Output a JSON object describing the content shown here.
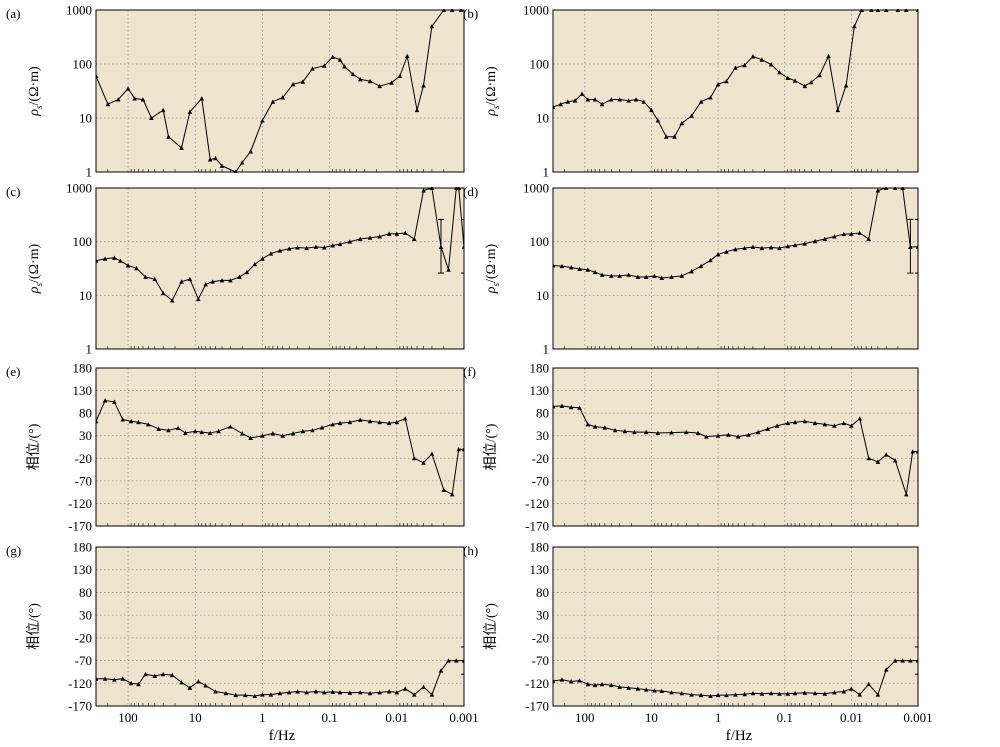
{
  "figure": {
    "x_axis_label": "f/Hz"
  },
  "style": {
    "panel_bg": "#efe5cf",
    "grid": "#8c8c8c",
    "line": "#000000"
  },
  "chart_data": [
    {
      "panel": "(a)",
      "type": "line",
      "scale": "log-log",
      "ylabel_rho": "ρs/(Ω·m)",
      "ylim": [
        1,
        1000
      ],
      "xlim": [
        300,
        0.001
      ],
      "y_ticks": [
        "1000",
        "100",
        "10",
        "1"
      ],
      "grid": true,
      "x": [
        300,
        200,
        140,
        100,
        80,
        60,
        45,
        30,
        25,
        16,
        12,
        8,
        6,
        5,
        4,
        2.5,
        2,
        1.5,
        1,
        0.7,
        0.5,
        0.35,
        0.25,
        0.18,
        0.12,
        0.09,
        0.07,
        0.06,
        0.045,
        0.035,
        0.025,
        0.018,
        0.012,
        0.009,
        0.007,
        0.005,
        0.004,
        0.003,
        0.002,
        0.0015,
        0.0011
      ],
      "y": [
        60,
        18,
        22,
        35,
        23,
        22,
        10,
        14,
        4.5,
        2.8,
        13,
        23,
        1.7,
        1.8,
        1.3,
        1,
        1.5,
        2.4,
        9,
        20,
        24,
        42,
        47,
        82,
        93,
        135,
        120,
        90,
        65,
        52,
        48,
        39,
        45,
        60,
        140,
        14,
        40,
        500,
        1000,
        1000,
        1000
      ]
    },
    {
      "panel": "(b)",
      "type": "line",
      "scale": "log-log",
      "ylabel_rho": "ρs/(Ω·m)",
      "ylim": [
        1,
        1000
      ],
      "xlim": [
        300,
        0.001
      ],
      "y_ticks": [
        "1000",
        "100",
        "10",
        "1"
      ],
      "grid": true,
      "x": [
        300,
        230,
        180,
        140,
        110,
        90,
        70,
        55,
        40,
        30,
        22,
        17,
        13,
        10,
        8,
        6,
        4.5,
        3.5,
        2.5,
        1.8,
        1.3,
        1,
        0.75,
        0.55,
        0.4,
        0.3,
        0.22,
        0.16,
        0.12,
        0.09,
        0.07,
        0.05,
        0.04,
        0.03,
        0.022,
        0.016,
        0.012,
        0.009,
        0.007,
        0.005,
        0.004,
        0.003,
        0.002,
        0.0015,
        0.001
      ],
      "y": [
        16,
        18,
        20,
        21,
        28,
        22,
        22,
        18,
        22,
        22,
        21,
        22,
        20,
        14,
        9,
        4.5,
        4.5,
        8,
        11,
        20,
        24,
        42,
        48,
        85,
        95,
        138,
        120,
        98,
        70,
        55,
        49,
        39,
        46,
        62,
        140,
        14,
        40,
        500,
        1000,
        1000,
        1000,
        1000,
        1000,
        1000,
        1000
      ]
    },
    {
      "panel": "(c)",
      "type": "line",
      "scale": "log-log",
      "ylabel_rho": "ρs/(Ω·m)",
      "ylim": [
        1,
        1000
      ],
      "xlim": [
        300,
        0.001
      ],
      "y_ticks": [
        "1000",
        "100",
        "10",
        "1"
      ],
      "grid": true,
      "x": [
        300,
        220,
        160,
        130,
        100,
        75,
        55,
        40,
        30,
        22,
        16,
        12,
        9,
        7,
        5.5,
        4,
        3,
        2.2,
        1.7,
        1.3,
        1,
        0.75,
        0.55,
        0.4,
        0.3,
        0.22,
        0.16,
        0.12,
        0.09,
        0.07,
        0.05,
        0.035,
        0.025,
        0.018,
        0.013,
        0.01,
        0.0075,
        0.0055,
        0.004,
        0.003,
        0.0022,
        0.0017,
        0.0013,
        0.0012,
        0.001
      ],
      "y": [
        44,
        48,
        50,
        44,
        36,
        32,
        22,
        20,
        11,
        8,
        18,
        20,
        8.5,
        16,
        18,
        19,
        19,
        22,
        27,
        38,
        48,
        60,
        68,
        74,
        78,
        76,
        80,
        78,
        85,
        90,
        100,
        112,
        118,
        125,
        140,
        140,
        145,
        112,
        900,
        1000,
        80,
        30,
        1000,
        1000,
        80
      ],
      "err_upper": [
        null,
        null,
        null,
        null,
        null,
        null,
        null,
        null,
        null,
        null,
        null,
        null,
        null,
        null,
        null,
        null,
        null,
        null,
        null,
        null,
        null,
        null,
        null,
        null,
        null,
        null,
        null,
        null,
        null,
        null,
        null,
        null,
        null,
        null,
        null,
        null,
        null,
        null,
        null,
        null,
        260,
        null,
        null,
        null,
        260
      ],
      "err_lower": [
        null,
        null,
        null,
        null,
        null,
        null,
        null,
        null,
        null,
        null,
        null,
        null,
        null,
        null,
        null,
        null,
        null,
        null,
        null,
        null,
        null,
        null,
        null,
        null,
        null,
        null,
        null,
        null,
        null,
        null,
        null,
        null,
        null,
        null,
        null,
        null,
        null,
        null,
        null,
        null,
        26,
        null,
        null,
        null,
        26
      ]
    },
    {
      "panel": "(d)",
      "type": "line",
      "scale": "log-log",
      "ylabel_rho": "ρs/(Ω·m)",
      "ylim": [
        1,
        1000
      ],
      "xlim": [
        300,
        0.001
      ],
      "y_ticks": [
        "1000",
        "100",
        "10",
        "1"
      ],
      "grid": true,
      "x": [
        300,
        220,
        160,
        120,
        90,
        70,
        55,
        40,
        30,
        22,
        16,
        12,
        9,
        7,
        5,
        3.5,
        2.5,
        1.8,
        1.3,
        1,
        0.75,
        0.55,
        0.4,
        0.3,
        0.22,
        0.16,
        0.12,
        0.09,
        0.07,
        0.05,
        0.035,
        0.025,
        0.018,
        0.013,
        0.01,
        0.0075,
        0.0055,
        0.004,
        0.003,
        0.0022,
        0.0017,
        0.0013,
        0.001
      ],
      "y": [
        36,
        35,
        33,
        31,
        30,
        27,
        24,
        23,
        23,
        24,
        22,
        22,
        23,
        21,
        22,
        23,
        28,
        35,
        45,
        58,
        65,
        72,
        76,
        80,
        76,
        78,
        76,
        82,
        86,
        92,
        102,
        112,
        125,
        138,
        140,
        145,
        112,
        900,
        1000,
        1000,
        1000,
        80,
        80
      ],
      "err_upper": [
        null,
        null,
        null,
        null,
        null,
        null,
        null,
        null,
        null,
        null,
        null,
        null,
        null,
        null,
        null,
        null,
        null,
        null,
        null,
        null,
        null,
        null,
        null,
        null,
        null,
        null,
        null,
        null,
        null,
        null,
        null,
        null,
        null,
        null,
        null,
        null,
        null,
        null,
        null,
        null,
        null,
        260,
        260
      ],
      "err_lower": [
        null,
        null,
        null,
        null,
        null,
        null,
        null,
        null,
        null,
        null,
        null,
        null,
        null,
        null,
        null,
        null,
        null,
        null,
        null,
        null,
        null,
        null,
        null,
        null,
        null,
        null,
        null,
        null,
        null,
        null,
        null,
        null,
        null,
        null,
        null,
        null,
        null,
        null,
        null,
        null,
        null,
        26,
        26
      ]
    },
    {
      "panel": "(e)",
      "type": "line",
      "scale": "log-linear",
      "ylabel_phase": "相位/(°)",
      "ylim": [
        -170,
        180
      ],
      "xlim": [
        300,
        0.001
      ],
      "y_ticks": [
        "180",
        "130",
        "80",
        "30",
        "-20",
        "-70",
        "-120",
        "-170"
      ],
      "grid": true,
      "x": [
        300,
        220,
        160,
        120,
        90,
        70,
        50,
        35,
        25,
        18,
        14,
        10,
        8,
        6,
        4.5,
        3,
        2,
        1.5,
        1,
        0.7,
        0.5,
        0.35,
        0.25,
        0.18,
        0.13,
        0.09,
        0.07,
        0.05,
        0.035,
        0.025,
        0.018,
        0.013,
        0.01,
        0.0075,
        0.0055,
        0.004,
        0.003,
        0.002,
        0.0015,
        0.0012,
        0.001
      ],
      "y": [
        62,
        108,
        105,
        66,
        62,
        60,
        55,
        45,
        42,
        47,
        36,
        40,
        38,
        36,
        40,
        50,
        35,
        25,
        30,
        35,
        30,
        35,
        40,
        42,
        48,
        55,
        58,
        60,
        65,
        62,
        60,
        58,
        60,
        68,
        -20,
        -30,
        -10,
        -90,
        -100,
        0,
        0
      ]
    },
    {
      "panel": "(f)",
      "type": "line",
      "scale": "log-linear",
      "ylabel_phase": "相位/(°)",
      "ylim": [
        -170,
        180
      ],
      "xlim": [
        300,
        0.001
      ],
      "y_ticks": [
        "180",
        "130",
        "80",
        "30",
        "-20",
        "-70",
        "-120",
        "-170"
      ],
      "grid": true,
      "x": [
        300,
        220,
        160,
        120,
        90,
        70,
        50,
        35,
        25,
        18,
        12,
        8,
        5,
        3,
        2,
        1.5,
        1,
        0.7,
        0.5,
        0.35,
        0.25,
        0.18,
        0.13,
        0.09,
        0.07,
        0.05,
        0.035,
        0.025,
        0.018,
        0.013,
        0.01,
        0.0075,
        0.0055,
        0.004,
        0.003,
        0.0022,
        0.0015,
        0.0012,
        0.001
      ],
      "y": [
        95,
        96,
        93,
        92,
        55,
        50,
        48,
        42,
        40,
        38,
        38,
        36,
        37,
        38,
        36,
        28,
        30,
        32,
        28,
        32,
        38,
        45,
        52,
        58,
        60,
        62,
        58,
        55,
        52,
        58,
        52,
        68,
        -20,
        -28,
        -12,
        -25,
        -100,
        -5,
        -5
      ]
    },
    {
      "panel": "(g)",
      "type": "line",
      "scale": "log-linear",
      "ylabel_phase": "相位/(°)",
      "ylim": [
        -170,
        180
      ],
      "xlim": [
        300,
        0.001
      ],
      "y_ticks": [
        "180",
        "130",
        "80",
        "30",
        "-20",
        "-70",
        "-120",
        "-170"
      ],
      "grid": true,
      "x": [
        300,
        220,
        160,
        120,
        90,
        70,
        55,
        40,
        30,
        22,
        16,
        12,
        9,
        7,
        5,
        3.5,
        2.5,
        1.8,
        1.3,
        1,
        0.75,
        0.55,
        0.4,
        0.3,
        0.22,
        0.16,
        0.12,
        0.09,
        0.07,
        0.05,
        0.035,
        0.025,
        0.018,
        0.013,
        0.01,
        0.0075,
        0.0055,
        0.004,
        0.003,
        0.0022,
        0.0017,
        0.0013,
        0.001
      ],
      "y": [
        -110,
        -110,
        -112,
        -110,
        -120,
        -122,
        -100,
        -104,
        -100,
        -102,
        -118,
        -130,
        -116,
        -125,
        -138,
        -142,
        -146,
        -146,
        -148,
        -145,
        -145,
        -142,
        -140,
        -138,
        -140,
        -138,
        -140,
        -139,
        -140,
        -141,
        -140,
        -142,
        -140,
        -138,
        -140,
        -132,
        -145,
        -128,
        -145,
        -92,
        -70,
        -70,
        -70
      ],
      "err_upper": [
        null,
        null,
        null,
        null,
        null,
        null,
        null,
        null,
        null,
        null,
        null,
        null,
        null,
        null,
        null,
        null,
        null,
        null,
        null,
        null,
        null,
        null,
        null,
        null,
        null,
        null,
        null,
        null,
        null,
        null,
        null,
        null,
        null,
        null,
        null,
        null,
        null,
        null,
        null,
        null,
        null,
        null,
        -40
      ],
      "err_lower": [
        null,
        null,
        null,
        null,
        null,
        null,
        null,
        null,
        null,
        null,
        null,
        null,
        null,
        null,
        null,
        null,
        null,
        null,
        null,
        null,
        null,
        null,
        null,
        null,
        null,
        null,
        null,
        null,
        null,
        null,
        null,
        null,
        null,
        null,
        null,
        null,
        null,
        null,
        null,
        null,
        null,
        null,
        -100
      ]
    },
    {
      "panel": "(h)",
      "type": "line",
      "scale": "log-linear",
      "ylabel_phase": "相位/(°)",
      "ylim": [
        -170,
        180
      ],
      "xlim": [
        300,
        0.001
      ],
      "y_ticks": [
        "180",
        "130",
        "80",
        "30",
        "-20",
        "-70",
        "-120",
        "-170"
      ],
      "grid": true,
      "x": [
        300,
        220,
        160,
        120,
        90,
        70,
        55,
        40,
        30,
        22,
        16,
        12,
        9,
        7,
        5,
        3.5,
        2.5,
        1.8,
        1.3,
        1,
        0.75,
        0.55,
        0.4,
        0.3,
        0.22,
        0.16,
        0.12,
        0.09,
        0.07,
        0.05,
        0.035,
        0.025,
        0.018,
        0.013,
        0.01,
        0.0075,
        0.0055,
        0.004,
        0.003,
        0.0022,
        0.0017,
        0.0013,
        0.001
      ],
      "y": [
        -115,
        -112,
        -116,
        -114,
        -122,
        -124,
        -122,
        -124,
        -128,
        -130,
        -132,
        -134,
        -136,
        -137,
        -140,
        -142,
        -145,
        -146,
        -148,
        -146,
        -146,
        -145,
        -144,
        -142,
        -143,
        -142,
        -143,
        -143,
        -142,
        -141,
        -142,
        -143,
        -140,
        -138,
        -132,
        -145,
        -122,
        -145,
        -90,
        -70,
        -70,
        -70,
        -70
      ],
      "err_upper": [
        null,
        null,
        null,
        null,
        null,
        null,
        null,
        null,
        null,
        null,
        null,
        null,
        null,
        null,
        null,
        null,
        null,
        null,
        null,
        null,
        null,
        null,
        null,
        null,
        null,
        null,
        null,
        null,
        null,
        null,
        null,
        null,
        null,
        null,
        null,
        null,
        null,
        null,
        null,
        null,
        null,
        null,
        -40
      ],
      "err_lower": [
        null,
        null,
        null,
        null,
        null,
        null,
        null,
        null,
        null,
        null,
        null,
        null,
        null,
        null,
        null,
        null,
        null,
        null,
        null,
        null,
        null,
        null,
        null,
        null,
        null,
        null,
        null,
        null,
        null,
        null,
        null,
        null,
        null,
        null,
        null,
        null,
        null,
        null,
        null,
        null,
        null,
        null,
        -100
      ]
    }
  ],
  "x_ticks": [
    "100",
    "10",
    "1",
    "0.1",
    "0.01",
    "0.001"
  ]
}
